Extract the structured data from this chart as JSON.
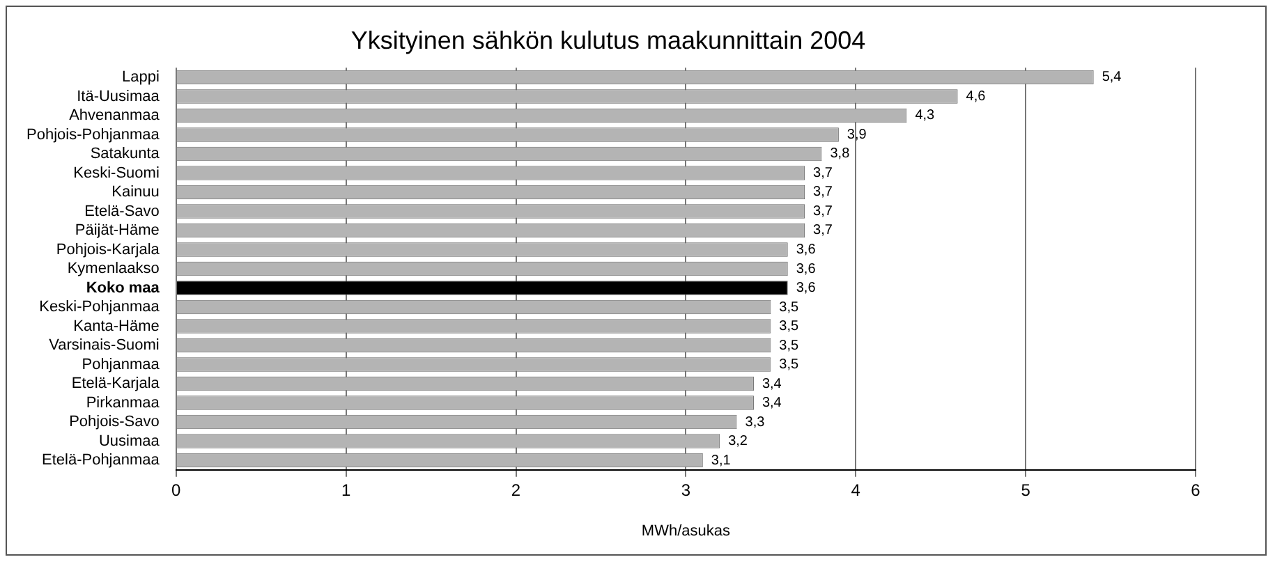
{
  "chart_data": {
    "type": "bar",
    "orientation": "horizontal",
    "title": "Yksityinen sähkön kulutus maakunnittain 2004",
    "xlabel": "MWh/asukas",
    "categories": [
      "Lappi",
      "Itä-Uusimaa",
      "Ahvenanmaa",
      "Pohjois-Pohjanmaa",
      "Satakunta",
      "Keski-Suomi",
      "Kainuu",
      "Etelä-Savo",
      "Päijät-Häme",
      "Pohjois-Karjala",
      "Kymenlaakso",
      "Koko maa",
      "Keski-Pohjanmaa",
      "Kanta-Häme",
      "Varsinais-Suomi",
      "Pohjanmaa",
      "Etelä-Karjala",
      "Pirkanmaa",
      "Pohjois-Savo",
      "Uusimaa",
      "Etelä-Pohjanmaa"
    ],
    "values": [
      5.4,
      4.6,
      4.3,
      3.9,
      3.8,
      3.7,
      3.7,
      3.7,
      3.7,
      3.6,
      3.6,
      3.6,
      3.5,
      3.5,
      3.5,
      3.5,
      3.4,
      3.4,
      3.3,
      3.2,
      3.1
    ],
    "value_labels": [
      "5,4",
      "4,6",
      "4,3",
      "3,9",
      "3,8",
      "3,7",
      "3,7",
      "3,7",
      "3,7",
      "3,6",
      "3,6",
      "3,6",
      "3,5",
      "3,5",
      "3,5",
      "3,5",
      "3,4",
      "3,4",
      "3,3",
      "3,2",
      "3,1"
    ],
    "color": "#b4b4b4",
    "colors": [
      "#b4b4b4",
      "#b4b4b4",
      "#b4b4b4",
      "#b4b4b4",
      "#b4b4b4",
      "#b4b4b4",
      "#b4b4b4",
      "#b4b4b4",
      "#b4b4b4",
      "#b4b4b4",
      "#b4b4b4",
      "#000000",
      "#b4b4b4",
      "#b4b4b4",
      "#b4b4b4",
      "#b4b4b4",
      "#b4b4b4",
      "#b4b4b4",
      "#b4b4b4",
      "#b4b4b4",
      "#b4b4b4"
    ],
    "xlim": [
      0,
      6
    ],
    "xticks": [
      0,
      1,
      2,
      3,
      4,
      5,
      6
    ],
    "grid": "x",
    "legend": false
  }
}
